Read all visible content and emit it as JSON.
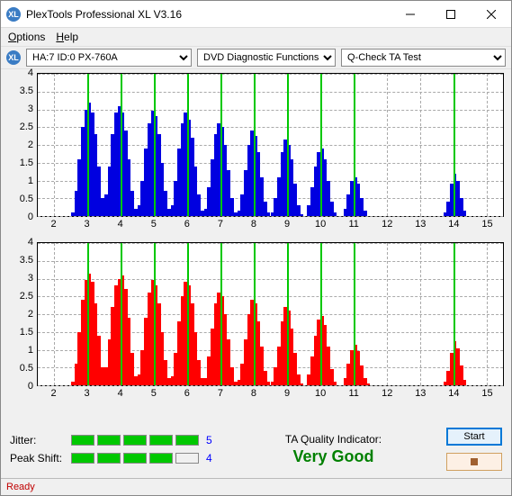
{
  "window": {
    "title": "PlexTools Professional XL V3.16",
    "icon_label": "XL"
  },
  "menu": {
    "options": "Options",
    "help": "Help"
  },
  "toolbar": {
    "drive_icon_label": "XL",
    "drive_select": "HA:7 ID:0  PX-760A",
    "func_select": "DVD Diagnostic Functions",
    "test_select": "Q-Check TA Test"
  },
  "charts": {
    "ylim": [
      0,
      4
    ],
    "yticks": [
      0,
      0.5,
      1,
      1.5,
      2,
      2.5,
      3,
      3.5,
      4
    ],
    "xlim": [
      1.5,
      15.5
    ],
    "xticks": [
      2,
      3,
      4,
      5,
      6,
      7,
      8,
      9,
      10,
      11,
      12,
      13,
      14,
      15
    ],
    "grid_color": "#aaaaaa",
    "peak_line_color": "#00c800",
    "peak_positions": [
      3,
      4,
      5,
      6,
      7,
      8,
      9,
      10,
      11,
      14
    ],
    "top": {
      "bar_color": "#0000e0",
      "bars": [
        [
          2.55,
          0.1
        ],
        [
          2.65,
          0.7
        ],
        [
          2.75,
          1.6
        ],
        [
          2.85,
          2.5
        ],
        [
          2.95,
          3.0
        ],
        [
          3.05,
          3.2
        ],
        [
          3.15,
          2.9
        ],
        [
          3.25,
          2.3
        ],
        [
          3.35,
          1.4
        ],
        [
          3.45,
          0.5
        ],
        [
          3.55,
          0.6
        ],
        [
          3.65,
          1.4
        ],
        [
          3.75,
          2.3
        ],
        [
          3.85,
          2.9
        ],
        [
          3.95,
          3.1
        ],
        [
          4.05,
          2.9
        ],
        [
          4.15,
          2.4
        ],
        [
          4.25,
          1.6
        ],
        [
          4.35,
          0.7
        ],
        [
          4.45,
          0.2
        ],
        [
          4.55,
          0.3
        ],
        [
          4.65,
          1.0
        ],
        [
          4.75,
          1.9
        ],
        [
          4.85,
          2.6
        ],
        [
          4.95,
          2.95
        ],
        [
          5.05,
          2.8
        ],
        [
          5.15,
          2.3
        ],
        [
          5.25,
          1.5
        ],
        [
          5.35,
          0.7
        ],
        [
          5.45,
          0.2
        ],
        [
          5.55,
          0.3
        ],
        [
          5.65,
          1.0
        ],
        [
          5.75,
          1.9
        ],
        [
          5.85,
          2.6
        ],
        [
          5.95,
          2.9
        ],
        [
          6.05,
          2.7
        ],
        [
          6.15,
          2.2
        ],
        [
          6.25,
          1.4
        ],
        [
          6.35,
          0.6
        ],
        [
          6.45,
          0.15
        ],
        [
          6.55,
          0.2
        ],
        [
          6.65,
          0.8
        ],
        [
          6.75,
          1.6
        ],
        [
          6.85,
          2.3
        ],
        [
          6.95,
          2.6
        ],
        [
          7.05,
          2.5
        ],
        [
          7.15,
          2.0
        ],
        [
          7.25,
          1.3
        ],
        [
          7.35,
          0.5
        ],
        [
          7.45,
          0.1
        ],
        [
          7.55,
          0.15
        ],
        [
          7.65,
          0.6
        ],
        [
          7.75,
          1.3
        ],
        [
          7.85,
          2.0
        ],
        [
          7.95,
          2.4
        ],
        [
          8.05,
          2.25
        ],
        [
          8.15,
          1.8
        ],
        [
          8.25,
          1.1
        ],
        [
          8.35,
          0.4
        ],
        [
          8.45,
          0.1
        ],
        [
          8.55,
          0.1
        ],
        [
          8.65,
          0.5
        ],
        [
          8.75,
          1.1
        ],
        [
          8.85,
          1.8
        ],
        [
          8.95,
          2.15
        ],
        [
          9.05,
          2.0
        ],
        [
          9.15,
          1.6
        ],
        [
          9.25,
          0.9
        ],
        [
          9.35,
          0.3
        ],
        [
          9.45,
          0.05
        ],
        [
          9.65,
          0.3
        ],
        [
          9.75,
          0.8
        ],
        [
          9.85,
          1.4
        ],
        [
          9.95,
          1.8
        ],
        [
          10.05,
          1.9
        ],
        [
          10.15,
          1.6
        ],
        [
          10.25,
          1.0
        ],
        [
          10.35,
          0.4
        ],
        [
          10.45,
          0.1
        ],
        [
          10.75,
          0.2
        ],
        [
          10.85,
          0.6
        ],
        [
          10.95,
          1.0
        ],
        [
          11.05,
          1.1
        ],
        [
          11.15,
          0.9
        ],
        [
          11.25,
          0.5
        ],
        [
          11.35,
          0.15
        ],
        [
          13.75,
          0.1
        ],
        [
          13.85,
          0.4
        ],
        [
          13.95,
          0.9
        ],
        [
          14.05,
          1.2
        ],
        [
          14.15,
          1.0
        ],
        [
          14.25,
          0.5
        ],
        [
          14.35,
          0.15
        ]
      ]
    },
    "bottom": {
      "bar_color": "#ff0000",
      "bars": [
        [
          2.55,
          0.1
        ],
        [
          2.65,
          0.6
        ],
        [
          2.75,
          1.5
        ],
        [
          2.85,
          2.4
        ],
        [
          2.95,
          2.95
        ],
        [
          3.05,
          3.15
        ],
        [
          3.15,
          2.9
        ],
        [
          3.25,
          2.3
        ],
        [
          3.35,
          1.4
        ],
        [
          3.45,
          0.5
        ],
        [
          3.55,
          0.5
        ],
        [
          3.65,
          1.3
        ],
        [
          3.75,
          2.2
        ],
        [
          3.85,
          2.8
        ],
        [
          3.95,
          3.0
        ],
        [
          4.05,
          3.1
        ],
        [
          4.15,
          2.7
        ],
        [
          4.25,
          1.9
        ],
        [
          4.35,
          0.9
        ],
        [
          4.45,
          0.25
        ],
        [
          4.55,
          0.3
        ],
        [
          4.65,
          1.0
        ],
        [
          4.75,
          1.9
        ],
        [
          4.85,
          2.6
        ],
        [
          4.95,
          2.95
        ],
        [
          5.05,
          2.8
        ],
        [
          5.15,
          2.3
        ],
        [
          5.25,
          1.5
        ],
        [
          5.35,
          0.7
        ],
        [
          5.45,
          0.2
        ],
        [
          5.55,
          0.25
        ],
        [
          5.65,
          0.9
        ],
        [
          5.75,
          1.8
        ],
        [
          5.85,
          2.5
        ],
        [
          5.95,
          2.9
        ],
        [
          6.05,
          2.8
        ],
        [
          6.15,
          2.3
        ],
        [
          6.25,
          1.5
        ],
        [
          6.35,
          0.7
        ],
        [
          6.45,
          0.2
        ],
        [
          6.55,
          0.2
        ],
        [
          6.65,
          0.8
        ],
        [
          6.75,
          1.6
        ],
        [
          6.85,
          2.3
        ],
        [
          6.95,
          2.6
        ],
        [
          7.05,
          2.5
        ],
        [
          7.15,
          2.0
        ],
        [
          7.25,
          1.3
        ],
        [
          7.35,
          0.5
        ],
        [
          7.45,
          0.1
        ],
        [
          7.55,
          0.15
        ],
        [
          7.65,
          0.6
        ],
        [
          7.75,
          1.3
        ],
        [
          7.85,
          2.0
        ],
        [
          7.95,
          2.4
        ],
        [
          8.05,
          2.3
        ],
        [
          8.15,
          1.8
        ],
        [
          8.25,
          1.1
        ],
        [
          8.35,
          0.4
        ],
        [
          8.45,
          0.1
        ],
        [
          8.55,
          0.1
        ],
        [
          8.65,
          0.5
        ],
        [
          8.75,
          1.1
        ],
        [
          8.85,
          1.8
        ],
        [
          8.95,
          2.2
        ],
        [
          9.05,
          2.1
        ],
        [
          9.15,
          1.6
        ],
        [
          9.25,
          0.9
        ],
        [
          9.35,
          0.3
        ],
        [
          9.45,
          0.05
        ],
        [
          9.65,
          0.3
        ],
        [
          9.75,
          0.8
        ],
        [
          9.85,
          1.4
        ],
        [
          9.95,
          1.85
        ],
        [
          10.05,
          1.95
        ],
        [
          10.15,
          1.7
        ],
        [
          10.25,
          1.1
        ],
        [
          10.35,
          0.45
        ],
        [
          10.45,
          0.1
        ],
        [
          10.75,
          0.2
        ],
        [
          10.85,
          0.6
        ],
        [
          10.95,
          1.0
        ],
        [
          11.05,
          1.15
        ],
        [
          11.15,
          0.95
        ],
        [
          11.25,
          0.55
        ],
        [
          11.35,
          0.2
        ],
        [
          11.45,
          0.05
        ],
        [
          13.75,
          0.1
        ],
        [
          13.85,
          0.4
        ],
        [
          13.95,
          0.9
        ],
        [
          14.05,
          1.25
        ],
        [
          14.15,
          1.05
        ],
        [
          14.25,
          0.55
        ],
        [
          14.35,
          0.15
        ]
      ]
    }
  },
  "footer": {
    "jitter_label": "Jitter:",
    "jitter_bars": 5,
    "jitter_on": 5,
    "jitter_val": "5",
    "peakshift_label": "Peak Shift:",
    "peakshift_bars": 5,
    "peakshift_on": 4,
    "peakshift_val": "4",
    "qi_label": "TA Quality Indicator:",
    "qi_val": "Very Good",
    "start_label": "Start"
  },
  "status": {
    "text": "Ready"
  }
}
